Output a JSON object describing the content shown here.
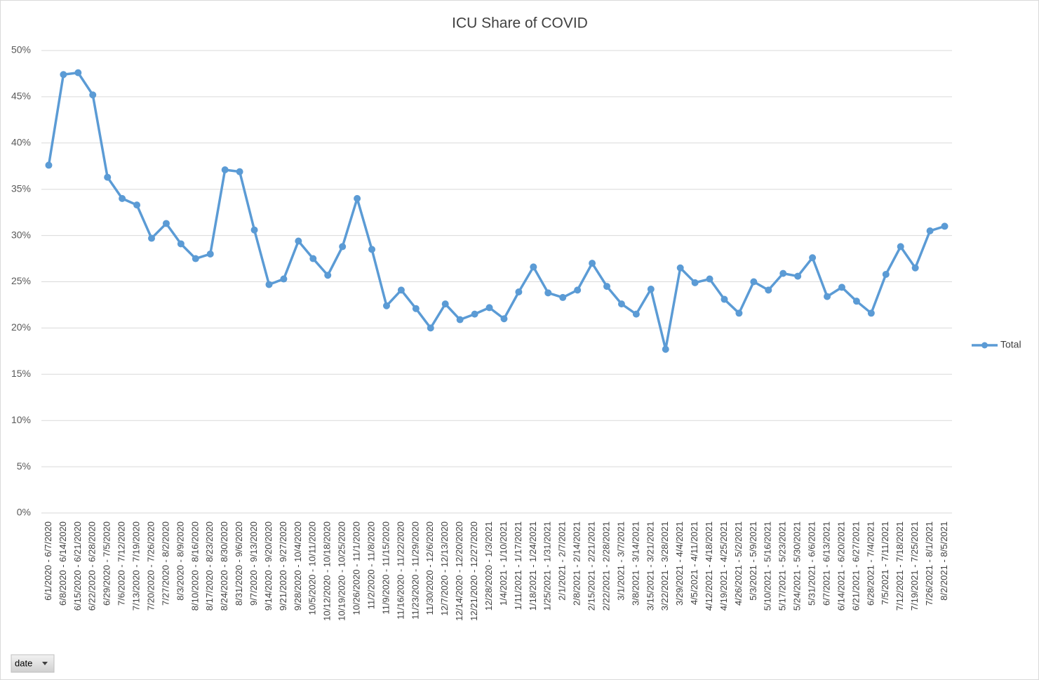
{
  "chart_data": {
    "type": "line",
    "title": "ICU Share of COVID",
    "categories": [
      "6/1/2020 - 6/7/2020",
      "6/8/2020 - 6/14/2020",
      "6/15/2020 - 6/21/2020",
      "6/22/2020 - 6/28/2020",
      "6/29/2020 - 7/5/2020",
      "7/6/2020 - 7/12/2020",
      "7/13/2020 - 7/19/2020",
      "7/20/2020 - 7/26/2020",
      "7/27/2020 - 8/2/2020",
      "8/3/2020 - 8/9/2020",
      "8/10/2020 - 8/16/2020",
      "8/17/2020 - 8/23/2020",
      "8/24/2020 - 8/30/2020",
      "8/31/2020 - 9/6/2020",
      "9/7/2020 - 9/13/2020",
      "9/14/2020 - 9/20/2020",
      "9/21/2020 - 9/27/2020",
      "9/28/2020 - 10/4/2020",
      "10/5/2020 - 10/11/2020",
      "10/12/2020 - 10/18/2020",
      "10/19/2020 - 10/25/2020",
      "10/26/2020 - 11/1/2020",
      "11/2/2020 - 11/8/2020",
      "11/9/2020 - 11/15/2020",
      "11/16/2020 - 11/22/2020",
      "11/23/2020 - 11/29/2020",
      "11/30/2020 - 12/6/2020",
      "12/7/2020 - 12/13/2020",
      "12/14/2020 - 12/20/2020",
      "12/21/2020 - 12/27/2020",
      "12/28/2020 - 1/3/2021",
      "1/4/2021 - 1/10/2021",
      "1/11/2021 - 1/17/2021",
      "1/18/2021 - 1/24/2021",
      "1/25/2021 - 1/31/2021",
      "2/1/2021 - 2/7/2021",
      "2/8/2021 - 2/14/2021",
      "2/15/2021 - 2/21/2021",
      "2/22/2021 - 2/28/2021",
      "3/1/2021 - 3/7/2021",
      "3/8/2021 - 3/14/2021",
      "3/15/2021 - 3/21/2021",
      "3/22/2021 - 3/28/2021",
      "3/29/2021 - 4/4/2021",
      "4/5/2021 - 4/11/2021",
      "4/12/2021 - 4/18/2021",
      "4/19/2021 - 4/25/2021",
      "4/26/2021 - 5/2/2021",
      "5/3/2021 - 5/9/2021",
      "5/10/2021 - 5/16/2021",
      "5/17/2021 - 5/23/2021",
      "5/24/2021 - 5/30/2021",
      "5/31/2021 - 6/6/2021",
      "6/7/2021 - 6/13/2021",
      "6/14/2021 - 6/20/2021",
      "6/21/2021 - 6/27/2021",
      "6/28/2021 - 7/4/2021",
      "7/5/2021 - 7/11/2021",
      "7/12/2021 - 7/18/2021",
      "7/19/2021 - 7/25/2021",
      "7/26/2021 - 8/1/2021",
      "8/2/2021 - 8/5/2021"
    ],
    "series": [
      {
        "name": "Total",
        "color": "#5b9bd5",
        "values": [
          37.6,
          47.4,
          47.6,
          45.2,
          36.3,
          34.0,
          33.3,
          29.7,
          31.3,
          29.1,
          27.5,
          28.0,
          37.1,
          36.9,
          30.6,
          24.7,
          25.3,
          29.4,
          27.5,
          25.7,
          28.8,
          34.0,
          28.5,
          22.4,
          24.1,
          22.1,
          20.0,
          22.6,
          20.9,
          21.5,
          22.2,
          21.0,
          23.9,
          26.6,
          23.8,
          23.3,
          24.1,
          27.0,
          24.5,
          22.6,
          21.5,
          24.2,
          17.7,
          26.5,
          24.9,
          25.3,
          23.1,
          21.6,
          25.0,
          24.1,
          25.9,
          25.6,
          27.6,
          23.4,
          24.4,
          22.9,
          21.6,
          25.8,
          28.8,
          26.5,
          30.5,
          31.0
        ]
      }
    ],
    "ylim": [
      0,
      50
    ],
    "yticks": [
      {
        "value": 0,
        "label": "0%"
      },
      {
        "value": 5,
        "label": "5%"
      },
      {
        "value": 10,
        "label": "10%"
      },
      {
        "value": 15,
        "label": "15%"
      },
      {
        "value": 20,
        "label": "20%"
      },
      {
        "value": 25,
        "label": "25%"
      },
      {
        "value": 30,
        "label": "30%"
      },
      {
        "value": 35,
        "label": "35%"
      },
      {
        "value": 40,
        "label": "40%"
      },
      {
        "value": 45,
        "label": "45%"
      },
      {
        "value": 50,
        "label": "50%"
      }
    ],
    "grid": true,
    "legend": "right",
    "field_button": "date"
  }
}
